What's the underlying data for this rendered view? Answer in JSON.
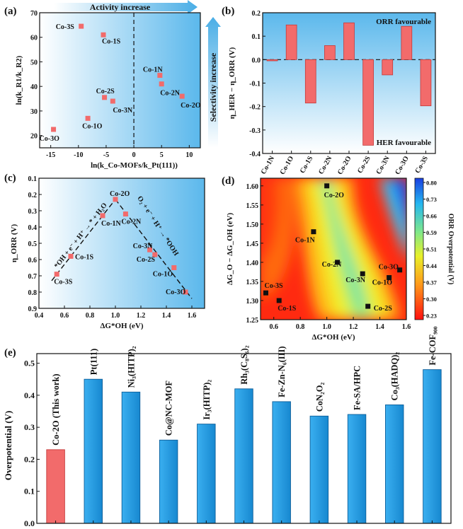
{
  "colors": {
    "red": "#f26b6b",
    "red_dark": "#c43a3a",
    "blue": "#1f9fe6",
    "blue_dark": "#0d5e99",
    "arrow": "#55b6e8",
    "black": "#111111",
    "label_red": "#e8474c"
  },
  "chart_data": [
    {
      "id": "a",
      "type": "scatter",
      "panel_label": "(a)",
      "xlabel": "ln(k_Co-MOFs/k_Pt(111))",
      "ylabel": "ln(k_R1/k_R2)",
      "xlim": [
        -17,
        12
      ],
      "ylim": [
        15,
        70
      ],
      "xticks": [
        -15,
        -10,
        -5,
        0,
        5,
        10
      ],
      "yticks": [
        20,
        30,
        40,
        50,
        60,
        70
      ],
      "top_arrow": "Activity increase",
      "side_arrow": "Selectivity increase",
      "points": [
        {
          "name": "Co-3S",
          "x": -9.5,
          "y": 64.5
        },
        {
          "name": "Co-1S",
          "x": -5.5,
          "y": 61
        },
        {
          "name": "Co-1N",
          "x": 4.7,
          "y": 44.5
        },
        {
          "name": "Co-2N",
          "x": 5.0,
          "y": 41
        },
        {
          "name": "Co-2S",
          "x": -5.3,
          "y": 35.5
        },
        {
          "name": "Co-3N",
          "x": -3.8,
          "y": 34
        },
        {
          "name": "Co-2O",
          "x": 8.7,
          "y": 36
        },
        {
          "name": "Co-1O",
          "x": -8.3,
          "y": 27
        },
        {
          "name": "Co-3O",
          "x": -14.5,
          "y": 22.5
        }
      ]
    },
    {
      "id": "b",
      "type": "bar",
      "panel_label": "(b)",
      "ylabel": "η_HER − η_ORR (V)",
      "ylim": [
        -0.4,
        0.2
      ],
      "yticks": [
        0.2,
        0.1,
        0.0,
        -0.1,
        -0.2,
        -0.3,
        -0.4
      ],
      "top_text": "ORR favourable",
      "bottom_text": "HER favourable",
      "categories": [
        "Co-1N",
        "Co-1O",
        "Co-1S",
        "Co-2N",
        "Co-2O",
        "Co-2S",
        "Co-3N",
        "Co-3O",
        "Co-3S"
      ],
      "values": [
        -0.005,
        0.148,
        -0.185,
        0.06,
        0.157,
        -0.365,
        -0.065,
        0.142,
        -0.197
      ]
    },
    {
      "id": "c",
      "type": "scatter",
      "panel_label": "(c)",
      "xlabel": "ΔG*OH (eV)",
      "ylabel": "η_ORR (V)",
      "xlim": [
        0.4,
        1.7
      ],
      "ylim": [
        0.9,
        0.1
      ],
      "xticks": [
        0.4,
        0.6,
        0.8,
        1.0,
        1.2,
        1.4,
        1.6
      ],
      "yticks": [
        0.1,
        0.2,
        0.3,
        0.4,
        0.5,
        0.6,
        0.7,
        0.8,
        0.9
      ],
      "left_line_label": "*OH + e⁻ + H⁺ → * + H₂O",
      "right_line_label": "O₂ + e⁻ + H⁺ → *OOH",
      "volcano": {
        "apex": [
          1.0,
          0.23
        ],
        "left_end": [
          0.5,
          0.73
        ],
        "right_end": [
          1.6,
          0.84
        ]
      },
      "points": [
        {
          "name": "Co-2O",
          "x": 1.0,
          "y": 0.23
        },
        {
          "name": "Co-1N",
          "x": 0.9,
          "y": 0.33
        },
        {
          "name": "Co-2N",
          "x": 1.08,
          "y": 0.32
        },
        {
          "name": "Co-1S",
          "x": 0.65,
          "y": 0.58
        },
        {
          "name": "Co-3N",
          "x": 1.27,
          "y": 0.54
        },
        {
          "name": "Co-2S",
          "x": 1.31,
          "y": 0.57
        },
        {
          "name": "Co-1O",
          "x": 1.46,
          "y": 0.65
        },
        {
          "name": "Co-3S",
          "x": 0.54,
          "y": 0.69
        },
        {
          "name": "Co-3O",
          "x": 1.55,
          "y": 0.8
        }
      ]
    },
    {
      "id": "d",
      "type": "heatmap",
      "panel_label": "(d)",
      "xlabel": "ΔG*OH (eV)",
      "ylabel": "ΔG_O − ΔG_OH (eV)",
      "xlim": [
        0.5,
        1.6
      ],
      "ylim": [
        1.25,
        1.62
      ],
      "xticks": [
        0.6,
        0.8,
        1.0,
        1.2,
        1.4,
        1.6
      ],
      "yticks": [
        1.25,
        1.3,
        1.35,
        1.4,
        1.45,
        1.5,
        1.55,
        1.6
      ],
      "colorbar_label": "ORR Overpotential (V)",
      "colorbar_ticks": [
        "0.80",
        "0.73",
        "0.66",
        "0.59",
        "0.51",
        "0.44",
        "0.37",
        "0.30",
        "0.23"
      ],
      "points": [
        {
          "name": "Co-2O",
          "x": 1.0,
          "y": 1.6
        },
        {
          "name": "Co-1N",
          "x": 0.9,
          "y": 1.48
        },
        {
          "name": "Co-2N",
          "x": 1.08,
          "y": 1.4
        },
        {
          "name": "Co-3N",
          "x": 1.27,
          "y": 1.37
        },
        {
          "name": "Co-3O",
          "x": 1.55,
          "y": 1.38
        },
        {
          "name": "Co-1O",
          "x": 1.47,
          "y": 1.36
        },
        {
          "name": "Co-3S",
          "x": 0.54,
          "y": 1.32
        },
        {
          "name": "Co-1S",
          "x": 0.64,
          "y": 1.3
        },
        {
          "name": "Co-2S",
          "x": 1.31,
          "y": 1.285
        }
      ]
    },
    {
      "id": "e",
      "type": "bar",
      "panel_label": "(e)",
      "ylabel": "Overpotential (V)",
      "ylim": [
        0.0,
        0.53
      ],
      "yticks": [
        0.0,
        0.1,
        0.2,
        0.3,
        0.4,
        0.5
      ],
      "categories": [
        "Co-2O (This work)",
        "Pt(111)",
        "Ni₃(HITP)₂",
        "Co@NC-MOF",
        "Ir₃(HITP)₂",
        "Rh₃(C₈S₆)₂",
        "Fe-Zn-N₆(III)",
        "CoN₂O₂",
        "Fe-SA/HPC",
        "Co₃(HADQ)₂",
        "Fe-COF₉₀₀"
      ],
      "values": [
        0.23,
        0.45,
        0.41,
        0.26,
        0.31,
        0.42,
        0.38,
        0.335,
        0.34,
        0.37,
        0.48
      ]
    }
  ]
}
